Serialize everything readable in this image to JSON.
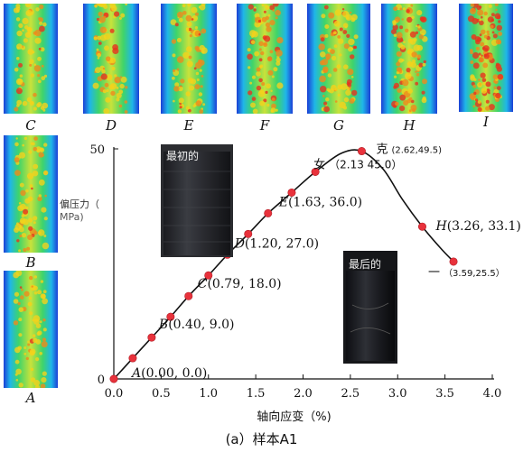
{
  "thumbnails": [
    {
      "id": "C",
      "label": "C",
      "intensity": 0.3
    },
    {
      "id": "D",
      "label": "D",
      "intensity": 0.35
    },
    {
      "id": "E",
      "label": "E",
      "intensity": 0.4
    },
    {
      "id": "F",
      "label": "F",
      "intensity": 0.42
    },
    {
      "id": "G",
      "label": "G",
      "intensity": 0.48
    },
    {
      "id": "H",
      "label": "H",
      "intensity": 0.7
    },
    {
      "id": "I",
      "label": "I",
      "intensity": 0.82
    },
    {
      "id": "B",
      "label": "B",
      "intensity": 0.32
    },
    {
      "id": "A",
      "label": "A",
      "intensity": 0.25
    }
  ],
  "photos": {
    "initial_label": "最初的",
    "final_label": "最后的"
  },
  "caption": "(a）样本A1",
  "chart_data": {
    "type": "line",
    "title": "",
    "xlabel": "轴向应变（%)",
    "ylabel_line1": "偏压力（",
    "ylabel_line2": "MPa)",
    "xlim": [
      0,
      4.0
    ],
    "ylim": [
      0,
      50
    ],
    "x_ticks": [
      "0.0",
      "0.5",
      "1.0",
      "1.5",
      "2.0",
      "2.5",
      "3.0",
      "3.5",
      "4.0"
    ],
    "y_ticks": [
      "0",
      "50"
    ],
    "curve": [
      {
        "x": 0.0,
        "y": 0.0
      },
      {
        "x": 0.2,
        "y": 4.5
      },
      {
        "x": 0.4,
        "y": 9.0
      },
      {
        "x": 0.6,
        "y": 13.5
      },
      {
        "x": 0.79,
        "y": 18.0
      },
      {
        "x": 1.0,
        "y": 22.5
      },
      {
        "x": 1.2,
        "y": 27.0
      },
      {
        "x": 1.42,
        "y": 31.5
      },
      {
        "x": 1.63,
        "y": 36.0
      },
      {
        "x": 1.88,
        "y": 40.5
      },
      {
        "x": 2.13,
        "y": 45.0
      },
      {
        "x": 2.4,
        "y": 49.0
      },
      {
        "x": 2.62,
        "y": 49.5
      },
      {
        "x": 2.85,
        "y": 45.5
      },
      {
        "x": 3.05,
        "y": 39.0
      },
      {
        "x": 3.26,
        "y": 33.1
      },
      {
        "x": 3.45,
        "y": 28.5
      },
      {
        "x": 3.59,
        "y": 25.5
      }
    ],
    "markers": [
      {
        "x": 0.0,
        "y": 0.0
      },
      {
        "x": 0.2,
        "y": 4.5
      },
      {
        "x": 0.4,
        "y": 9.0
      },
      {
        "x": 0.6,
        "y": 13.5
      },
      {
        "x": 0.79,
        "y": 18.0
      },
      {
        "x": 1.0,
        "y": 22.5
      },
      {
        "x": 1.2,
        "y": 27.0
      },
      {
        "x": 1.42,
        "y": 31.5
      },
      {
        "x": 1.63,
        "y": 36.0
      },
      {
        "x": 1.88,
        "y": 40.5
      },
      {
        "x": 2.13,
        "y": 45.0
      },
      {
        "x": 2.62,
        "y": 49.5
      },
      {
        "x": 3.26,
        "y": 33.1
      },
      {
        "x": 3.59,
        "y": 25.5
      }
    ],
    "annotations": [
      {
        "name": "annotation-a",
        "letter": "A",
        "text": "(0.00, 0.0)",
        "x": 0.0,
        "y": 0.0
      },
      {
        "name": "annotation-b",
        "letter": "B",
        "text": "(0.40, 9.0)",
        "x": 0.4,
        "y": 9.0
      },
      {
        "name": "annotation-c",
        "letter": "C",
        "text": "(0.79, 18.0)",
        "x": 0.79,
        "y": 18.0
      },
      {
        "name": "annotation-d",
        "letter": "D",
        "text": "(1.20, 27.0)",
        "x": 1.2,
        "y": 27.0
      },
      {
        "name": "annotation-e",
        "letter": "E",
        "text": "(1.63, 36.0)",
        "x": 1.63,
        "y": 36.0
      },
      {
        "name": "annotation-f",
        "letter": "女",
        "text": "（2.13 45.0）",
        "x": 2.13,
        "y": 45.0,
        "cjk": true
      },
      {
        "name": "annotation-g",
        "letter": "克",
        "text": "(2.62,49.5)",
        "x": 2.62,
        "y": 49.5,
        "cjk": true
      },
      {
        "name": "annotation-h",
        "letter": "H",
        "text": "(3.26, 33.1)",
        "x": 3.26,
        "y": 33.1
      },
      {
        "name": "annotation-i",
        "letter": "一",
        "text": "（3.59,25.5）",
        "x": 3.59,
        "y": 25.5,
        "cjk": true
      }
    ],
    "colors": {
      "curve": "#111111",
      "marker": "#e8323c",
      "axis": "#111111"
    }
  }
}
